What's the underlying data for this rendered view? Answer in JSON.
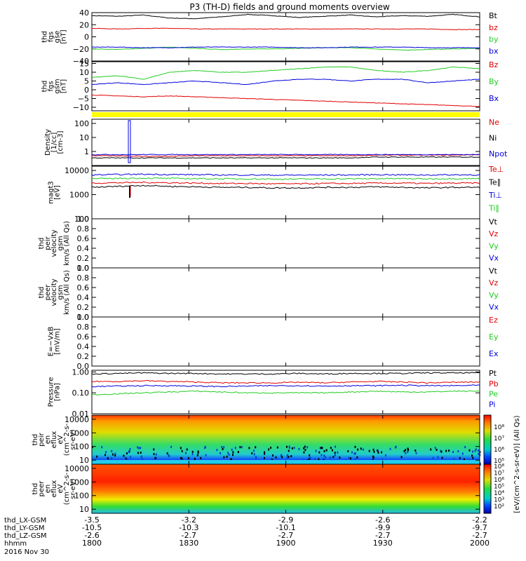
{
  "title": "P3 (TH-D) fields and ground moments overview",
  "colors": {
    "black": "#000000",
    "red": "#e00000",
    "green": "#22cc22",
    "blue": "#0000dd",
    "yellow": "#ffff00"
  },
  "footer": {
    "rows": [
      {
        "label": "thd_LX-GSM",
        "values": [
          "-3.5",
          "-3.2",
          "-2.9",
          "-2.6",
          "-2.2"
        ]
      },
      {
        "label": "thd_LY-GSM",
        "values": [
          "-10.5",
          "-10.3",
          "-10.1",
          "-9.9",
          "-9.7"
        ]
      },
      {
        "label": "thd_LZ-GSM",
        "values": [
          "-2.6",
          "-2.7",
          "-2.7",
          "-2.7",
          "-2.7"
        ]
      },
      {
        "label": "hhmm",
        "values": [
          "1800",
          "1830",
          "1900",
          "1930",
          "2000"
        ]
      }
    ],
    "date": "2016 Nov 30"
  },
  "chart_data": [
    {
      "type": "line",
      "ylabel": [
        "thd",
        "fgs",
        "gse",
        "[nT]"
      ],
      "ylim": [
        -40,
        40
      ],
      "yticks": [
        "40",
        "20",
        "0",
        "−20",
        "−40"
      ],
      "series": [
        {
          "name": "Bt",
          "color": "black",
          "values": [
            35,
            34,
            36,
            31,
            30,
            33,
            37,
            35,
            32,
            34,
            36,
            33,
            35,
            34,
            37,
            33
          ]
        },
        {
          "name": "bz",
          "color": "red",
          "values": [
            14,
            13,
            14,
            14,
            13,
            13,
            13,
            13,
            13,
            13,
            13,
            13,
            13,
            13,
            12,
            12
          ]
        },
        {
          "name": "by",
          "color": "green",
          "values": [
            -20,
            -21,
            -19,
            -17,
            -19,
            -21,
            -20,
            -20,
            -19,
            -18,
            -18,
            -20,
            -22,
            -21,
            -20,
            -19
          ]
        },
        {
          "name": "bx",
          "color": "blue",
          "values": [
            -17,
            -17,
            -18,
            -18,
            -17,
            -17,
            -17,
            -17,
            -18,
            -18,
            -17,
            -17,
            -17,
            -18,
            -18,
            -18
          ]
        }
      ]
    },
    {
      "type": "line",
      "ylabel": [
        "thd",
        "fgs",
        "gsm",
        "[nT]"
      ],
      "ylim": [
        -12,
        16
      ],
      "yticks": [
        "15",
        "10",
        "5",
        "0",
        "−5",
        "−10"
      ],
      "series": [
        {
          "name": "Bz",
          "color": "red",
          "values": [
            -3,
            -3.5,
            -4,
            -3.5,
            -4,
            -4.5,
            -5,
            -5.5,
            -6,
            -6.5,
            -7,
            -7.5,
            -8,
            -8.5,
            -9,
            -9.5
          ]
        },
        {
          "name": "By",
          "color": "green",
          "values": [
            7,
            8,
            6,
            10,
            11,
            10,
            10,
            11,
            12,
            13,
            13,
            11,
            10,
            11,
            13,
            12
          ]
        },
        {
          "name": "Bx",
          "color": "blue",
          "values": [
            3,
            4,
            3,
            4,
            5,
            4,
            3,
            5,
            6,
            6,
            5,
            6,
            6,
            4,
            5,
            6
          ]
        }
      ]
    },
    {
      "type": "line",
      "ylabel": [
        "Density",
        "[1/cc]",
        "[cm-3]"
      ],
      "log": true,
      "ylim": [
        0.1,
        200
      ],
      "yticks": [
        "100",
        "10",
        "1"
      ],
      "series": [
        {
          "name": "Ne",
          "color": "red",
          "values": [
            0.5,
            0.5,
            0.45,
            0.45,
            0.5,
            0.5,
            0.5,
            0.5,
            0.5,
            0.5,
            0.5,
            0.55,
            0.55,
            0.55,
            0.55,
            0.6
          ]
        },
        {
          "name": "Ni",
          "color": "black",
          "values": [
            0.35,
            0.35,
            0.35,
            0.35,
            0.35,
            0.35,
            0.35,
            0.35,
            0.35,
            0.35,
            0.35,
            0.4,
            0.4,
            0.4,
            0.4,
            0.4
          ]
        },
        {
          "name": "Npot",
          "color": "blue",
          "values": [
            0.6,
            0.6,
            0.6,
            0.6,
            0.6,
            0.6,
            0.6,
            0.6,
            0.6,
            0.6,
            0.6,
            0.6,
            0.6,
            0.6,
            0.6,
            0.6
          ]
        }
      ]
    },
    {
      "type": "line",
      "ylabel": [
        "magt3",
        "[eV]"
      ],
      "log": true,
      "ylim": [
        100,
        15000
      ],
      "yticks": [
        "10000",
        "1000",
        "100"
      ],
      "series": [
        {
          "name": "Te⊥",
          "color": "red",
          "values": [
            3000,
            3100,
            3200,
            3100,
            3000,
            2900,
            2900,
            2800,
            2800,
            2900,
            2900,
            3000,
            3000,
            2900,
            3000,
            3000
          ]
        },
        {
          "name": "Te∥",
          "color": "black",
          "values": [
            2000,
            2200,
            2400,
            2200,
            2100,
            2000,
            2000,
            1900,
            1900,
            2000,
            2000,
            2100,
            2000,
            1900,
            2000,
            2000
          ]
        },
        {
          "name": "Ti⊥",
          "color": "blue",
          "values": [
            6500,
            6800,
            7000,
            6800,
            6700,
            6500,
            6500,
            6400,
            6400,
            6500,
            6500,
            6700,
            6600,
            6500,
            6600,
            6600
          ]
        },
        {
          "name": "Ti∥",
          "color": "green",
          "values": [
            4500,
            4700,
            4800,
            4700,
            4600,
            4500,
            4500,
            4400,
            4400,
            4500,
            4500,
            4600,
            4600,
            4500,
            4600,
            4600
          ]
        }
      ]
    },
    {
      "type": "line",
      "ylabel": [
        "thd",
        "peir",
        "velocity",
        "gsm",
        "km/s (All Qs)"
      ],
      "ylim": [
        0,
        1
      ],
      "yticks": [
        "1.0",
        "0.8",
        "0.6",
        "0.4",
        "0.2",
        "0.0"
      ],
      "series": [
        {
          "name": "Vt",
          "color": "black"
        },
        {
          "name": "Vz",
          "color": "red"
        },
        {
          "name": "Vy",
          "color": "green"
        },
        {
          "name": "Vx",
          "color": "blue"
        }
      ]
    },
    {
      "type": "line",
      "ylabel": [
        "thd",
        "peer",
        "velocity",
        "gsm",
        "km/s (All Qs)"
      ],
      "ylim": [
        0,
        1
      ],
      "yticks": [
        "1.0",
        "0.8",
        "0.6",
        "0.4",
        "0.2",
        "0.0"
      ],
      "series": [
        {
          "name": "Vt",
          "color": "black"
        },
        {
          "name": "Vz",
          "color": "red"
        },
        {
          "name": "Vy",
          "color": "green"
        },
        {
          "name": "Vx",
          "color": "blue"
        }
      ]
    },
    {
      "type": "line",
      "ylabel": [
        "E=−VxB",
        "[mV/m]"
      ],
      "ylim": [
        0,
        1
      ],
      "yticks": [
        "1.0",
        "0.8",
        "0.6",
        "0.4",
        "0.2",
        "0.0"
      ],
      "series": [
        {
          "name": "Ez",
          "color": "red"
        },
        {
          "name": "Ey",
          "color": "green"
        },
        {
          "name": "Ex",
          "color": "blue"
        }
      ]
    },
    {
      "type": "line",
      "ylabel": [
        "Pressure",
        "[nPa]"
      ],
      "log": true,
      "ylim": [
        0.01,
        1.2
      ],
      "yticks": [
        "1.00",
        "0.10",
        "0.01"
      ],
      "series": [
        {
          "name": "Pt",
          "color": "black",
          "values": [
            0.8,
            0.85,
            0.9,
            0.85,
            0.85,
            0.8,
            0.8,
            0.8,
            0.85,
            0.8,
            0.85,
            0.85,
            0.85,
            0.9,
            0.9,
            0.9
          ]
        },
        {
          "name": "Pb",
          "color": "red",
          "values": [
            0.35,
            0.35,
            0.38,
            0.35,
            0.33,
            0.3,
            0.3,
            0.3,
            0.32,
            0.3,
            0.33,
            0.35,
            0.33,
            0.3,
            0.32,
            0.33
          ]
        },
        {
          "name": "Pe",
          "color": "green",
          "values": [
            0.08,
            0.09,
            0.1,
            0.11,
            0.12,
            0.11,
            0.1,
            0.1,
            0.1,
            0.1,
            0.11,
            0.12,
            0.11,
            0.11,
            0.12,
            0.12
          ]
        },
        {
          "name": "Pi",
          "color": "blue",
          "values": [
            0.2,
            0.21,
            0.22,
            0.22,
            0.21,
            0.2,
            0.21,
            0.22,
            0.22,
            0.21,
            0.22,
            0.22,
            0.23,
            0.22,
            0.22,
            0.23
          ]
        }
      ]
    },
    {
      "type": "heatmap",
      "ylabel": [
        "thd",
        "peir",
        "en",
        "eflux",
        "eV",
        "(cm^2-s-",
        "sr-eV)"
      ],
      "log": true,
      "ylim": [
        5,
        20000
      ],
      "yticks": [
        "10000",
        "1000",
        "100",
        "10"
      ]
    },
    {
      "type": "heatmap",
      "ylabel": [
        "thd",
        "peer",
        "en",
        "eflux",
        "eV",
        "(cm^2-s-",
        "sr-eV)"
      ],
      "log": true,
      "ylim": [
        5,
        20000
      ],
      "yticks": [
        "10000",
        "1000",
        "100",
        "10"
      ]
    }
  ],
  "colorbar": {
    "label": "[eV/(cm^2-s-sr-eV)] (All Qs)",
    "ticks_top": [
      "10⁸",
      "10⁷",
      "10⁶",
      "10⁵"
    ],
    "ticks_bottom": [
      "10⁸",
      "10⁷",
      "10⁶",
      "10⁵",
      "10⁴",
      "10³",
      "10²"
    ]
  }
}
